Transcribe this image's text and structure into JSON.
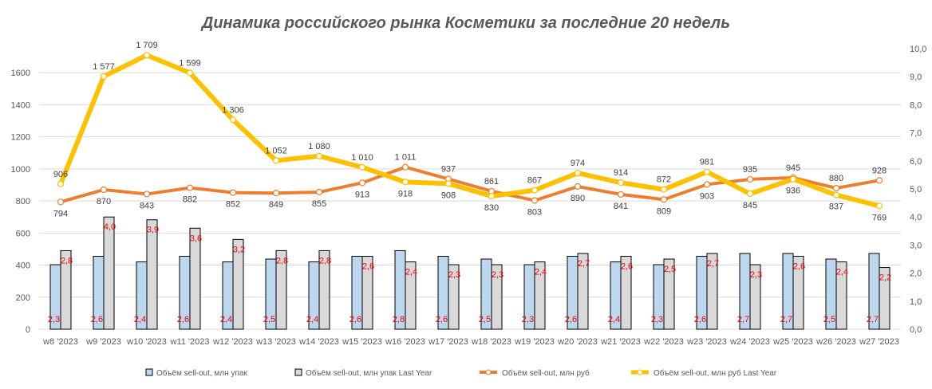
{
  "chart_data": {
    "type": "bar",
    "title": "Динамика российского рынка Косметики за последние 20 недель",
    "categories": [
      "w8 '2023",
      "w9 '2023",
      "w10 '2023",
      "w11 '2023",
      "w12 '2023",
      "w13 '2023",
      "w14 '2023",
      "w15 '2023",
      "w16 '2023",
      "w17 '2023",
      "w18 '2023",
      "w19 '2023",
      "w20 '2023",
      "w21 '2023",
      "w22 '2023",
      "w23 '2023",
      "w24 '2023",
      "w25 '2023",
      "w26 '2023",
      "w27 '2023"
    ],
    "y_left": {
      "ylim": [
        0,
        1750
      ],
      "ticks": [
        "0",
        "200",
        "400",
        "600",
        "800",
        "1000",
        "1200",
        "1400",
        "1600"
      ],
      "tick_values": [
        0,
        200,
        400,
        600,
        800,
        1000,
        1200,
        1400,
        1600
      ]
    },
    "y_right": {
      "ylim": [
        0,
        10
      ],
      "ticks": [
        "0,0",
        "1,0",
        "2,0",
        "3,0",
        "4,0",
        "5,0",
        "6,0",
        "7,0",
        "8,0",
        "9,0",
        "10,0"
      ],
      "tick_values": [
        0,
        1,
        2,
        3,
        4,
        5,
        6,
        7,
        8,
        9,
        10
      ]
    },
    "grid": true,
    "legend_position": "bottom",
    "series": [
      {
        "name": "Объём sell-out, млн упак",
        "kind": "bar",
        "axis": "right",
        "color": "#BDD7EE",
        "values": [
          2.3,
          2.6,
          2.4,
          2.6,
          2.4,
          2.5,
          2.4,
          2.6,
          2.8,
          2.6,
          2.5,
          2.3,
          2.6,
          2.4,
          2.3,
          2.6,
          2.7,
          2.7,
          2.5,
          2.7
        ],
        "labels": [
          "2,3",
          "2,6",
          "2,4",
          "2,6",
          "2,4",
          "2,5",
          "2,4",
          "2,6",
          "2,8",
          "2,6",
          "2,5",
          "2,3",
          "2,6",
          "2,4",
          "2,3",
          "2,6",
          "2,7",
          "2,7",
          "2,5",
          "2,7"
        ]
      },
      {
        "name": "Объём sell-out, млн упак Last Year",
        "kind": "bar",
        "axis": "right",
        "color": "#D9D9D9",
        "values": [
          2.8,
          4.0,
          3.9,
          3.6,
          3.2,
          2.8,
          2.8,
          2.6,
          2.4,
          2.3,
          2.3,
          2.4,
          2.7,
          2.6,
          2.5,
          2.7,
          2.3,
          2.6,
          2.4,
          2.2
        ],
        "labels": [
          "2,8",
          "4,0",
          "3,9",
          "3,6",
          "3,2",
          "2,8",
          "2,8",
          "2,6",
          "2,4",
          "2,3",
          "2,3",
          "2,4",
          "2,7",
          "2,6",
          "2,5",
          "2,7",
          "2,3",
          "2,6",
          "2,4",
          "2,2"
        ]
      },
      {
        "name": "Объём sell-out, млн руб",
        "kind": "line",
        "axis": "left",
        "color": "#ED7D31",
        "values": [
          794,
          870,
          843,
          882,
          852,
          849,
          855,
          913,
          1011,
          937,
          861,
          803,
          890,
          841,
          809,
          903,
          935,
          945,
          880,
          928
        ],
        "labels": [
          "794",
          "870",
          "843",
          "882",
          "852",
          "849",
          "855",
          "913",
          "1 011",
          "937",
          "861",
          "803",
          "890",
          "841",
          "809",
          "903",
          "935",
          "945",
          "880",
          "928"
        ]
      },
      {
        "name": "Объём sell-out, млн руб Last Year",
        "kind": "line",
        "axis": "left",
        "color": "#FFC000",
        "values": [
          906,
          1577,
          1709,
          1599,
          1306,
          1052,
          1080,
          1010,
          918,
          908,
          830,
          867,
          974,
          914,
          872,
          981,
          845,
          936,
          837,
          769
        ],
        "labels": [
          "906",
          "1 577",
          "1 709",
          "1 599",
          "1 306",
          "1 052",
          "1 080",
          "1 010",
          "918",
          "908",
          "830",
          "867",
          "974",
          "914",
          "872",
          "981",
          "845",
          "936",
          "837",
          "769"
        ]
      }
    ]
  }
}
